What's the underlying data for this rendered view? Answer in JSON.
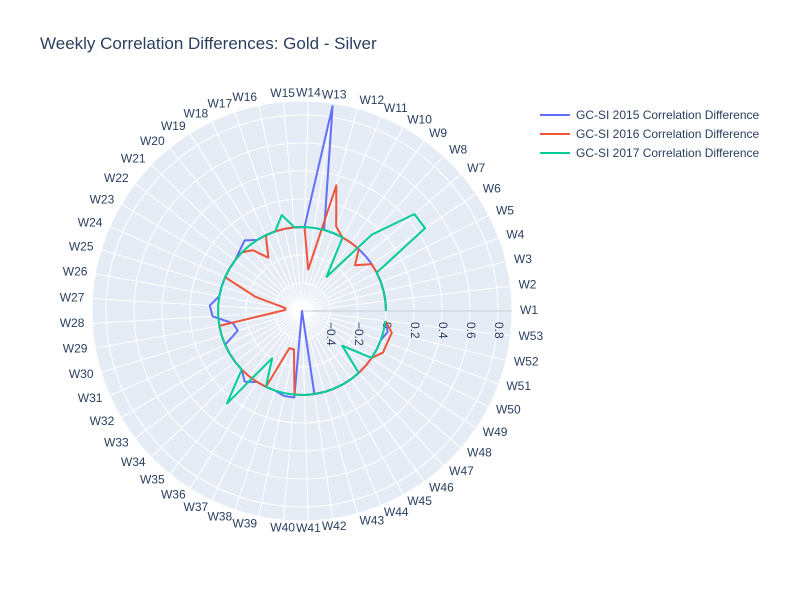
{
  "chart_data": {
    "type": "polar-line",
    "title": "Weekly Correlation Differences: Gold - Silver",
    "angular_categories": [
      "W1",
      "W2",
      "W3",
      "W4",
      "W5",
      "W6",
      "W7",
      "W8",
      "W9",
      "W10",
      "W11",
      "W12",
      "W13",
      "W14",
      "W15",
      "W16",
      "W17",
      "W18",
      "W19",
      "W20",
      "W21",
      "W22",
      "W23",
      "W24",
      "W25",
      "W26",
      "W27",
      "W28",
      "W29",
      "W30",
      "W31",
      "W32",
      "W33",
      "W34",
      "W35",
      "W36",
      "W37",
      "W38",
      "W39",
      "W40",
      "W41",
      "W42",
      "W43",
      "W44",
      "W45",
      "W46",
      "W47",
      "W48",
      "W49",
      "W50",
      "W51",
      "W52",
      "W53"
    ],
    "radial_range": [
      -0.6,
      0.9
    ],
    "radial_ticks": [
      -0.4,
      -0.2,
      0,
      0.2,
      0.4,
      0.6,
      0.8
    ],
    "radial_tick_labels": [
      "−0.4",
      "−0.2",
      "0",
      "0.2",
      "0.4",
      "0.6",
      "0.8"
    ],
    "grid": true,
    "legend_position": "top-right",
    "background_color": "#e5ecf6",
    "series": [
      {
        "name": "GC-SI 2015 Correlation Difference",
        "color": "#636efa",
        "values": [
          0,
          0,
          0,
          0,
          0,
          0,
          0,
          0,
          0,
          0,
          0,
          0,
          0.88,
          0,
          0,
          0,
          0,
          0,
          0,
          0.05,
          0.02,
          0,
          0,
          0,
          0,
          0,
          0.06,
          0.04,
          -0.1,
          -0.12,
          0,
          0,
          0,
          0,
          0.05,
          0,
          0,
          0,
          0.02,
          0.02,
          -0.6,
          0,
          0,
          0,
          0,
          0,
          0,
          0,
          0,
          0,
          0,
          0.03,
          0
        ]
      },
      {
        "name": "GC-SI 2016 Correlation Difference",
        "color": "#ef553b",
        "values": [
          0,
          0,
          0,
          0,
          0,
          0,
          -0.1,
          0,
          0,
          0,
          0.05,
          0.33,
          -0.3,
          0,
          0,
          0,
          0,
          0,
          -0.15,
          -0.04,
          0,
          0,
          0,
          0,
          -0.25,
          -0.48,
          -0.48,
          -0.4,
          0,
          0,
          0,
          0,
          0,
          0,
          0,
          0,
          0,
          -0.32,
          -0.32,
          0,
          0,
          0,
          0,
          0,
          0,
          0,
          0,
          0,
          0,
          0.05,
          0.05,
          0.06,
          0
        ]
      },
      {
        "name": "GC-SI 2017 Correlation Difference",
        "color": "#00cc96",
        "values": [
          0,
          0,
          0,
          0,
          0,
          0.46,
          0.46,
          0.14,
          -0.3,
          0,
          0,
          0,
          0,
          0,
          0,
          0.1,
          0,
          0,
          0,
          0,
          0,
          0,
          0,
          0,
          0,
          0,
          0,
          0,
          0,
          0,
          0,
          0,
          0,
          0,
          0.25,
          -0.2,
          0,
          0,
          0,
          0,
          0,
          0,
          0,
          0,
          0,
          0,
          0,
          -0.22,
          0,
          0,
          0,
          0,
          0
        ]
      }
    ]
  }
}
